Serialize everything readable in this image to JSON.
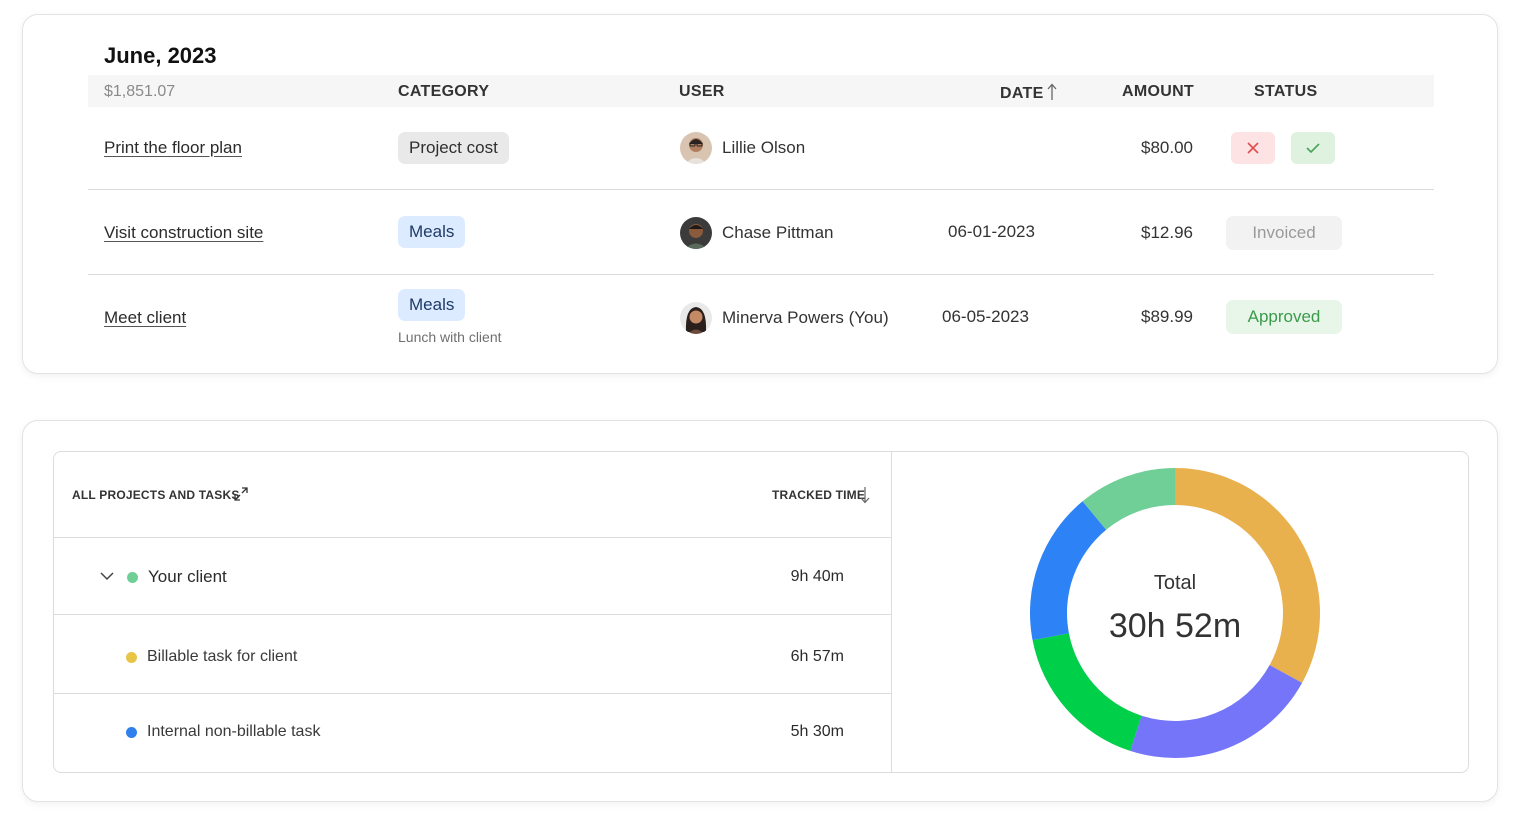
{
  "expenses": {
    "title": "June, 2023",
    "header": {
      "total": "$1,851.07",
      "category": "CATEGORY",
      "user": "USER",
      "date": "DATE",
      "amount": "AMOUNT",
      "status": "STATUS"
    },
    "rows": [
      {
        "name": "Print the floor plan",
        "category": "Project cost",
        "category_note": "",
        "user": "Lillie Olson",
        "date": "",
        "amount": "$80.00",
        "status": ""
      },
      {
        "name": "Visit construction site",
        "category": "Meals",
        "category_note": "",
        "user": "Chase Pittman",
        "date": "06-01-2023",
        "amount": "$12.96",
        "status": "Invoiced"
      },
      {
        "name": "Meet client ",
        "category": "Meals",
        "category_note": "Lunch with client",
        "user": "Minerva Powers (You)",
        "date": "06-05-2023",
        "amount": "$89.99",
        "status": "Approved"
      }
    ]
  },
  "time_report": {
    "header": {
      "projects": "ALL PROJECTS AND TASKS",
      "tracked": "TRACKED TIME"
    },
    "rows": [
      {
        "label": "Your client",
        "time": "9h 40m",
        "color": "#6fcf97"
      },
      {
        "label": "Billable task for client",
        "time": "6h 57m",
        "color": "#e8c547"
      },
      {
        "label": "Internal non-billable task",
        "time": "5h 30m",
        "color": "#2f80ed"
      }
    ],
    "donut": {
      "label": "Total",
      "value": "30h 52m"
    }
  },
  "chart_data": {
    "type": "pie",
    "categories": [
      "Yellow",
      "Purple",
      "Green",
      "Blue",
      "Light green"
    ],
    "values": [
      0.33,
      0.22,
      0.17,
      0.17,
      0.11
    ],
    "colors": [
      "#e9b04e",
      "#7575fa",
      "#00cf4a",
      "#2d82f5",
      "#6fcf97"
    ]
  }
}
